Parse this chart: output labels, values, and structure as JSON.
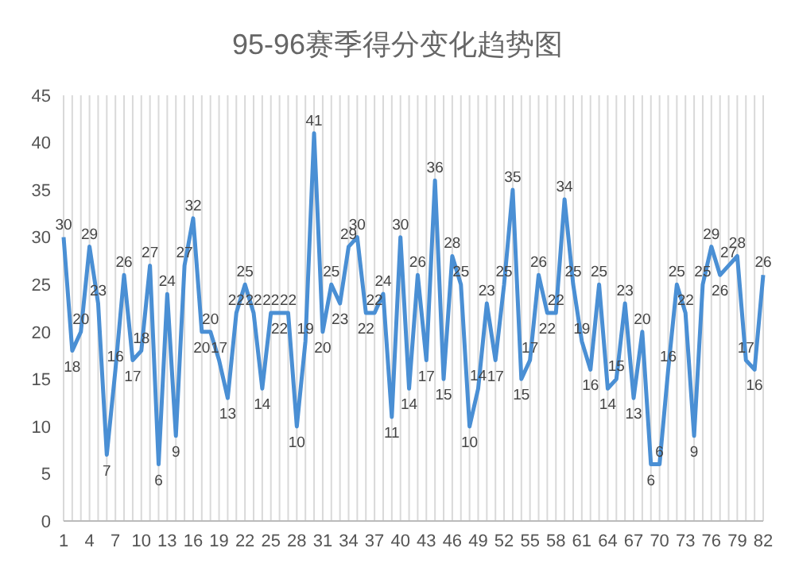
{
  "chart_data": {
    "type": "line",
    "title": "95-96赛季得分变化趋势图",
    "categories": [
      "1",
      null,
      null,
      "4",
      null,
      null,
      "7",
      null,
      null,
      "10",
      null,
      null,
      "13",
      null,
      null,
      "16",
      null,
      null,
      "19",
      null,
      null,
      "22",
      null,
      null,
      "25",
      null,
      null,
      "28",
      null,
      null,
      "31",
      null,
      null,
      "34",
      null,
      null,
      "37",
      null,
      null,
      "40",
      null,
      null,
      "43",
      null,
      null,
      "46",
      null,
      null,
      "49",
      null,
      null,
      "52",
      null,
      null,
      "55",
      null,
      null,
      "58",
      null,
      null,
      "61",
      null,
      null,
      "64",
      null,
      null,
      "67",
      null,
      null,
      "70",
      null,
      null,
      "73",
      null,
      null,
      "76",
      null,
      null,
      "79",
      null,
      null,
      "82"
    ],
    "series": [
      {
        "color": "#4a8fd4",
        "values": [
          30,
          18,
          20,
          29,
          23,
          7,
          16,
          26,
          17,
          18,
          27,
          6,
          24,
          9,
          27,
          32,
          20,
          20,
          17,
          13,
          22,
          25,
          22,
          14,
          22,
          22,
          22,
          10,
          19,
          41,
          20,
          25,
          23,
          29,
          30,
          22,
          22,
          24,
          11,
          30,
          14,
          26,
          17,
          36,
          15,
          28,
          25,
          10,
          14,
          23,
          17,
          25,
          35,
          15,
          17,
          26,
          22,
          22,
          34,
          25,
          19,
          16,
          25,
          14,
          15,
          23,
          13,
          20,
          6,
          6,
          16,
          25,
          22,
          9,
          25,
          29,
          26,
          27,
          28,
          17,
          16,
          26
        ]
      }
    ],
    "ylim": [
      0,
      45
    ],
    "yticks": [
      0,
      5,
      10,
      15,
      20,
      25,
      30,
      35,
      40,
      45
    ],
    "grid": "x",
    "data_labels": true,
    "marker": "none",
    "line_style": "solid"
  }
}
